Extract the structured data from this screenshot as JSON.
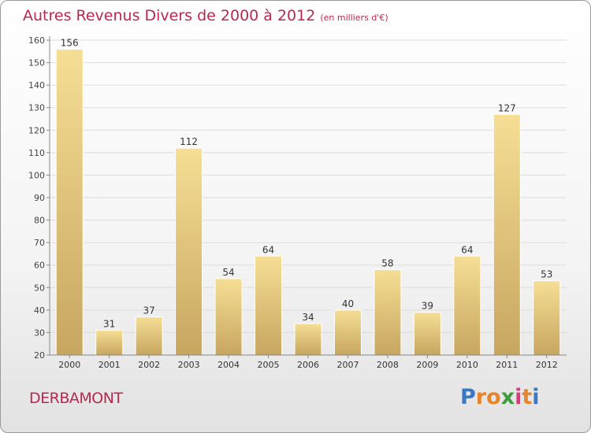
{
  "header": {
    "title": "Autres Revenus Divers de 2000 à 2012",
    "subtitle": "(en milliers d'€)"
  },
  "footer": {
    "commune": "DERBAMONT",
    "logo_letters": [
      "P",
      "r",
      "o",
      "x",
      "i",
      "t",
      "i"
    ]
  },
  "colors": {
    "title": "#b9284f",
    "bar_top": "#f6de95",
    "bar_bottom": "#c7a660",
    "logo": [
      "#3a78c4",
      "#e6852a",
      "#e6852a",
      "#3c9b3a",
      "#d93a7a",
      "#e6852a",
      "#3a78c4"
    ]
  },
  "chart_data": {
    "type": "bar",
    "title": "Autres Revenus Divers de 2000 à 2012",
    "subtitle": "(en milliers d'€)",
    "categories": [
      "2000",
      "2001",
      "2002",
      "2003",
      "2004",
      "2005",
      "2006",
      "2007",
      "2008",
      "2009",
      "2010",
      "2011",
      "2012"
    ],
    "values": [
      156,
      31,
      37,
      112,
      54,
      64,
      34,
      40,
      58,
      39,
      64,
      127,
      53
    ],
    "ylim": [
      20,
      160
    ],
    "yticks": [
      20,
      30,
      40,
      50,
      60,
      70,
      80,
      90,
      100,
      110,
      120,
      130,
      140,
      150,
      160
    ],
    "grid": true,
    "legend": "none"
  }
}
